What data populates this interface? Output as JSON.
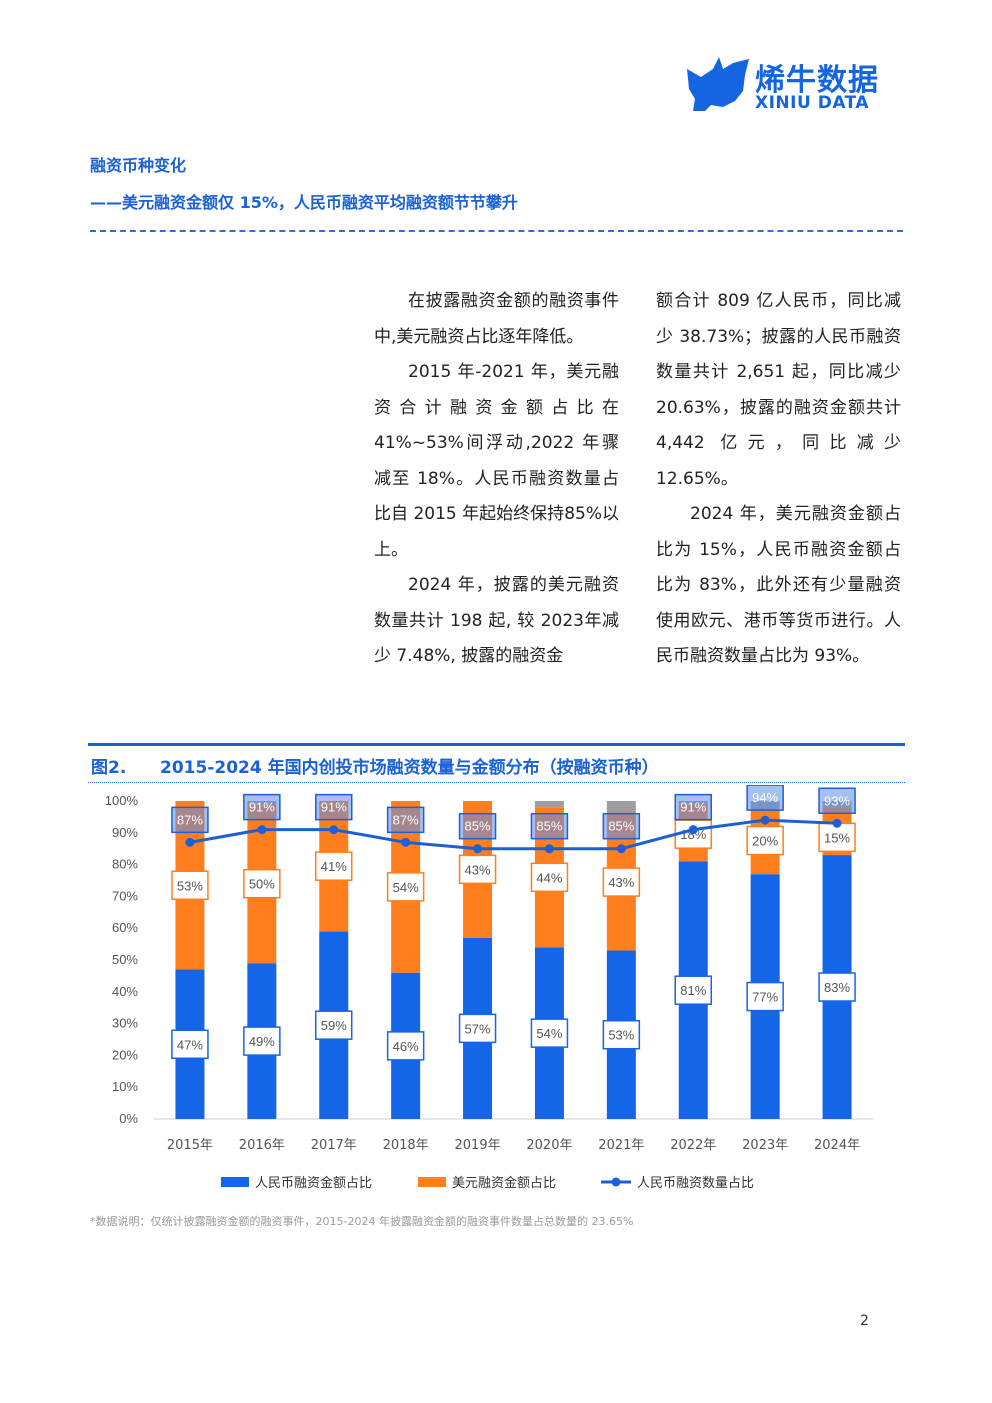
{
  "logo": {
    "cn": "烯牛数据",
    "en": "XINIU DATA"
  },
  "section": {
    "title": "融资币种变化",
    "subtitle": "——美元融资金额仅 15%，人民币融资平均融资额节节攀升"
  },
  "body": {
    "left": [
      "在披露融资金额的融资事件中,美元融资占比逐年降低。",
      "2015 年-2021 年，美元融资合计融资金额占比在41%~53%间浮动,2022 年骤减至 18%。人民币融资数量占比自 2015 年起始终保持85%以上。",
      "2024 年，披露的美元融资数量共计 198 起, 较 2023年减少 7.48%, 披露的融资金"
    ],
    "right": [
      "额合计 809 亿人民币，同比减少 38.73%；披露的人民币融资数量共计 2,651 起，同比减少 20.63%，披露的融资金额共计 4,442 亿元，同比减少 12.65%。",
      "2024 年，美元融资金额占比为 15%，人民币融资金额占比为 83%，此外还有少量融资使用欧元、港币等货币进行。人民币融资数量占比为 93%。"
    ]
  },
  "figure": {
    "label": "图2.",
    "title": "2015-2024 年国内创投市场融资数量与金额分布（按融资币种）"
  },
  "chart_data": {
    "type": "bar",
    "stacked": true,
    "categories": [
      "2015年",
      "2016年",
      "2017年",
      "2018年",
      "2019年",
      "2020年",
      "2021年",
      "2022年",
      "2023年",
      "2024年"
    ],
    "series": [
      {
        "name": "人民币融资金额占比",
        "kind": "bar",
        "color": "#1565e8",
        "values": [
          47,
          49,
          59,
          46,
          57,
          54,
          53,
          81,
          77,
          83
        ]
      },
      {
        "name": "美元融资金额占比",
        "kind": "bar",
        "color": "#ff7f1f",
        "values": [
          53,
          50,
          41,
          54,
          43,
          44,
          43,
          18,
          20,
          15
        ]
      },
      {
        "name": "人民币融资数量占比",
        "kind": "line",
        "color": "#1c5fd6",
        "values": [
          87,
          91,
          91,
          87,
          85,
          85,
          85,
          91,
          94,
          93
        ]
      }
    ],
    "yticks": [
      "0%",
      "10%",
      "20%",
      "30%",
      "40%",
      "50%",
      "60%",
      "70%",
      "80%",
      "90%",
      "100%"
    ],
    "ylim": [
      0,
      100
    ],
    "grid": false,
    "legend": "bottom"
  },
  "note": "*数据说明：仅统计披露融资金额的融资事件，2015-2024 年披露融资金额的融资事件数量占总数量的 23.65%",
  "page_number": "2"
}
